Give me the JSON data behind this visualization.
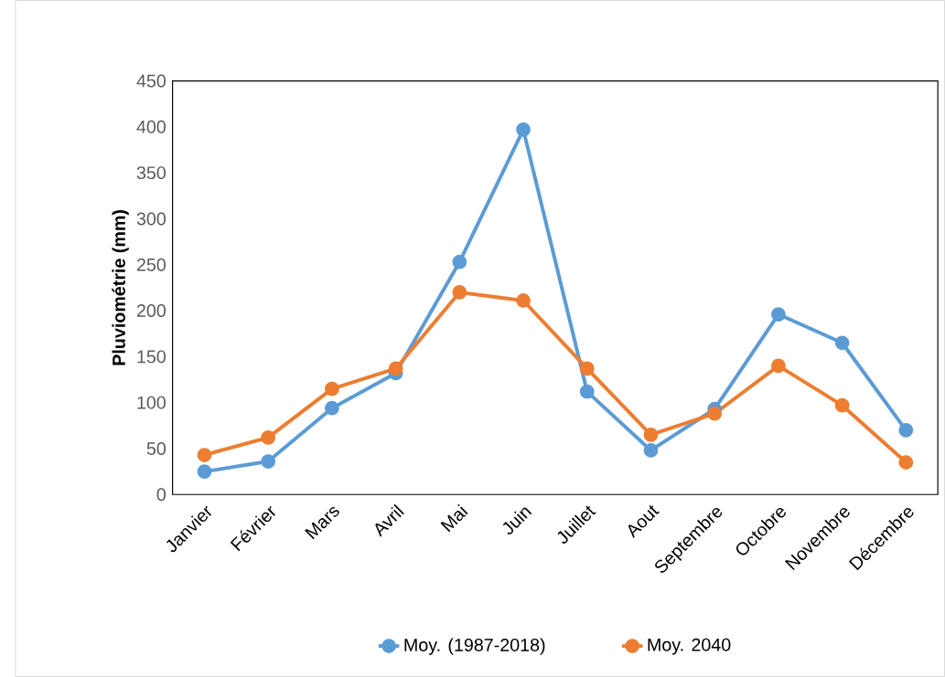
{
  "chart_data": {
    "type": "line",
    "ylabel": "Pluviométrie (mm)",
    "categories": [
      "Janvier",
      "Février",
      "Mars",
      "Avril",
      "Mai",
      "Juin",
      "Juillet",
      "Aout",
      "Septembre",
      "Octobre",
      "Novembre",
      "Décembre"
    ],
    "series": [
      {
        "name": "Moy. (1987-2018)",
        "color": "#5b9bd5",
        "values": [
          25,
          36,
          94,
          132,
          253,
          397,
          112,
          48,
          93,
          196,
          165,
          70
        ]
      },
      {
        "name": "Moy. 2040",
        "color": "#ed7d31",
        "values": [
          43,
          62,
          115,
          137,
          220,
          211,
          137,
          65,
          88,
          140,
          97,
          35
        ]
      }
    ],
    "ylim": [
      0,
      450
    ],
    "yticks": [
      0,
      50,
      100,
      150,
      200,
      250,
      300,
      350,
      400,
      450
    ],
    "legend": "bottom",
    "marker": "circle"
  }
}
